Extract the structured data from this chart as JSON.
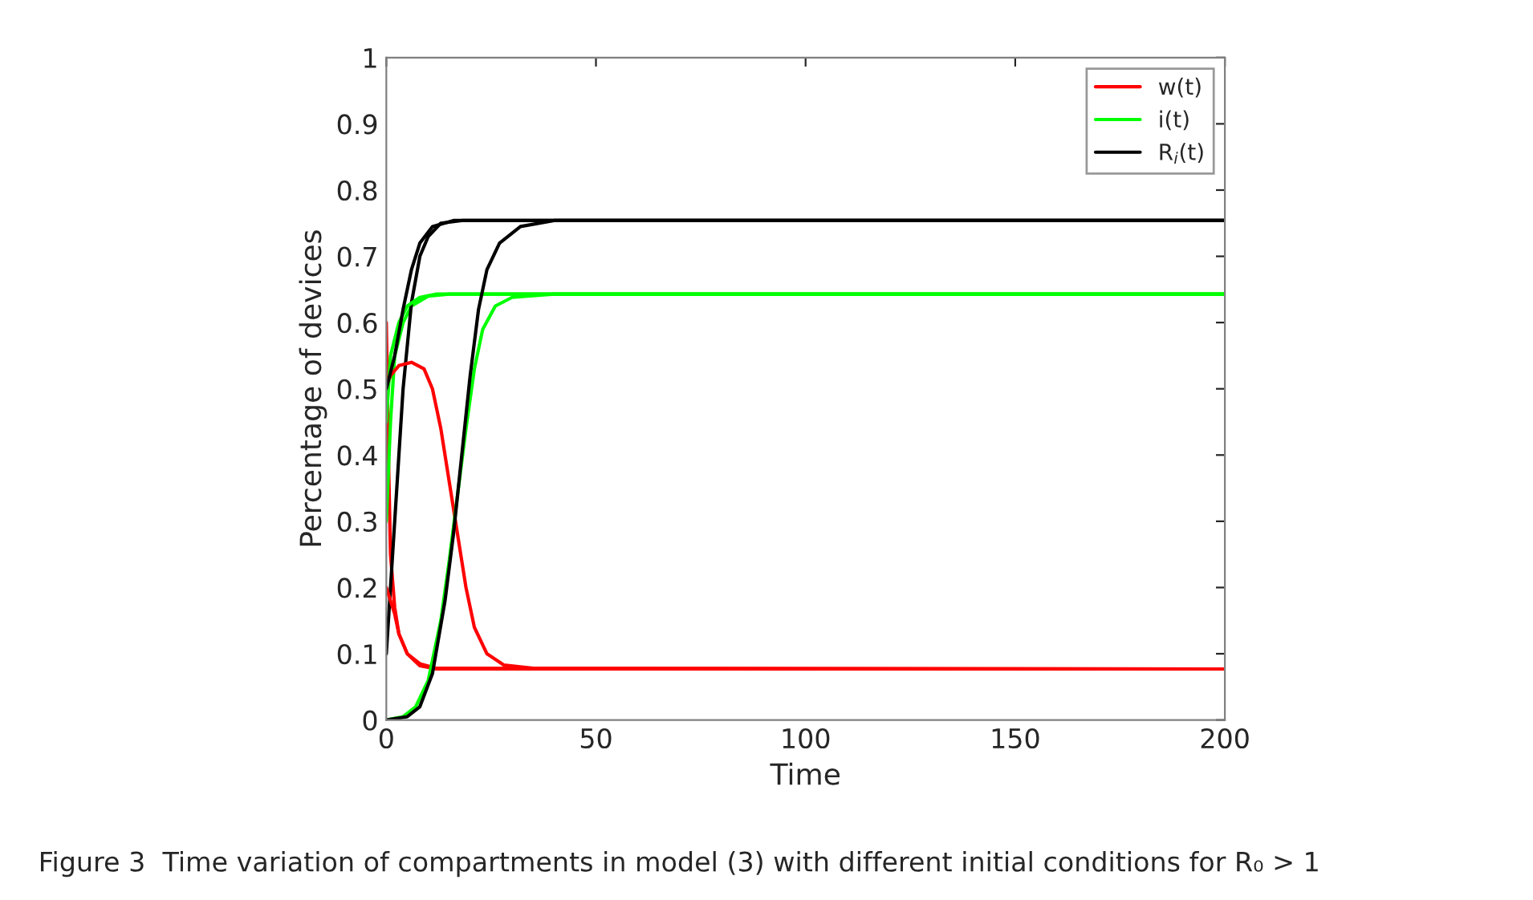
{
  "chart_data": {
    "type": "line",
    "xlabel": "Time",
    "ylabel": "Percentage of devices",
    "xlim": [
      0,
      200
    ],
    "ylim": [
      0,
      1
    ],
    "xticks": [
      0,
      50,
      100,
      150,
      200
    ],
    "yticks": [
      0,
      0.1,
      0.2,
      0.3,
      0.4,
      0.5,
      0.6,
      0.7,
      0.8,
      0.9,
      1
    ],
    "grid": false,
    "legend": "top right",
    "marker": "none",
    "line_style": "solid",
    "annotations": [
      "Figure 3  Time variation of compartments in model (3) with different initial conditions for R₀ > 1"
    ],
    "series": [
      {
        "name": "w(t)",
        "color": "#ff0000",
        "x": [
          0,
          0.5,
          1,
          2,
          3,
          5,
          8,
          12,
          200
        ],
        "values": [
          0.6,
          0.4,
          0.25,
          0.17,
          0.13,
          0.1,
          0.082,
          0.077,
          0.077
        ]
      },
      {
        "name": "i(t)",
        "color": "#00ff00",
        "x": [
          0,
          1,
          2,
          4,
          6,
          10,
          15,
          200
        ],
        "values": [
          0.3,
          0.45,
          0.55,
          0.6,
          0.625,
          0.64,
          0.643,
          0.643
        ]
      },
      {
        "name": "R$_{i}$(t)",
        "color": "#000000",
        "x": [
          0,
          2,
          4,
          6,
          8,
          10,
          13,
          18,
          200
        ],
        "values": [
          0.1,
          0.3,
          0.5,
          0.63,
          0.7,
          0.73,
          0.75,
          0.754,
          0.754
        ]
      },
      {
        "color": "#ff0000",
        "x": [
          0,
          1,
          2,
          3,
          5,
          8,
          12,
          200
        ],
        "values": [
          0.2,
          0.18,
          0.16,
          0.13,
          0.1,
          0.085,
          0.078,
          0.077
        ]
      },
      {
        "color": "#ff0000",
        "x": [
          0,
          1,
          3,
          6,
          9,
          11,
          13,
          15,
          17,
          19,
          21,
          24,
          28,
          35,
          200
        ],
        "values": [
          0.5,
          0.52,
          0.535,
          0.54,
          0.53,
          0.5,
          0.44,
          0.36,
          0.28,
          0.2,
          0.14,
          0.1,
          0.083,
          0.078,
          0.077
        ]
      },
      {
        "color": "#00ff00",
        "x": [
          0,
          1,
          3,
          5,
          8,
          12,
          200
        ],
        "values": [
          0.45,
          0.55,
          0.6,
          0.625,
          0.638,
          0.643,
          0.643
        ]
      },
      {
        "color": "#00ff00",
        "x": [
          0,
          4,
          7,
          10,
          13,
          15,
          17,
          19,
          21,
          23,
          26,
          30,
          40,
          200
        ],
        "values": [
          0,
          0.005,
          0.02,
          0.06,
          0.15,
          0.24,
          0.34,
          0.44,
          0.53,
          0.59,
          0.625,
          0.638,
          0.643,
          0.643
        ]
      },
      {
        "color": "#000000",
        "x": [
          0,
          2,
          4,
          6,
          8,
          11,
          16,
          200
        ],
        "values": [
          0.5,
          0.55,
          0.62,
          0.68,
          0.72,
          0.745,
          0.754,
          0.754
        ]
      },
      {
        "color": "#000000",
        "x": [
          0,
          5,
          8,
          11,
          14,
          16,
          18,
          20,
          22,
          24,
          27,
          32,
          40,
          200
        ],
        "values": [
          0,
          0.005,
          0.02,
          0.07,
          0.18,
          0.28,
          0.4,
          0.52,
          0.62,
          0.68,
          0.72,
          0.745,
          0.754,
          0.754
        ]
      }
    ]
  }
}
